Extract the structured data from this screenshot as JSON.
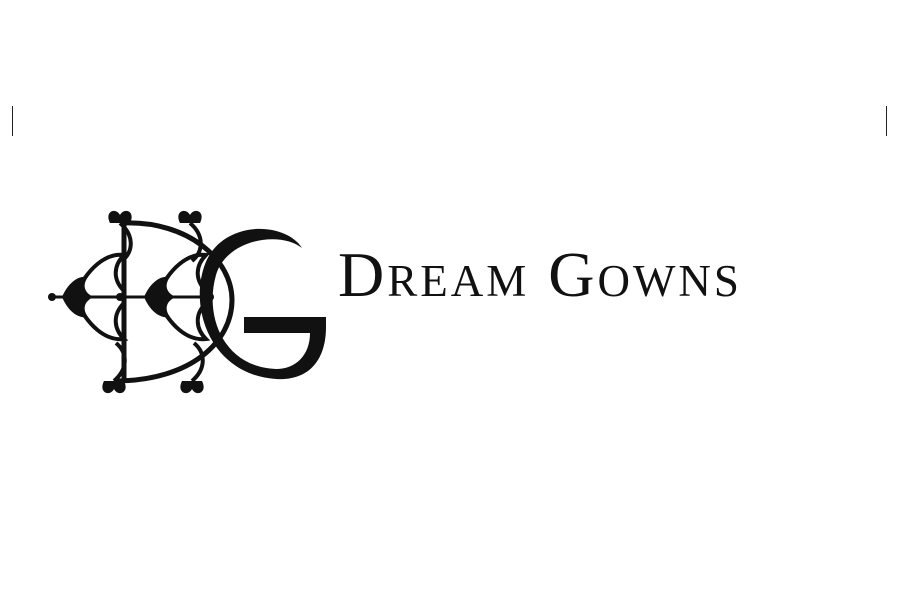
{
  "brand": {
    "name": "Dream Gowns",
    "monogram": "DG",
    "ink_color": "#111111",
    "background_color": "#ffffff"
  },
  "icons": {
    "monogram": "dg-ornamental-monogram-icon",
    "crop_mark": "crop-mark-line"
  }
}
